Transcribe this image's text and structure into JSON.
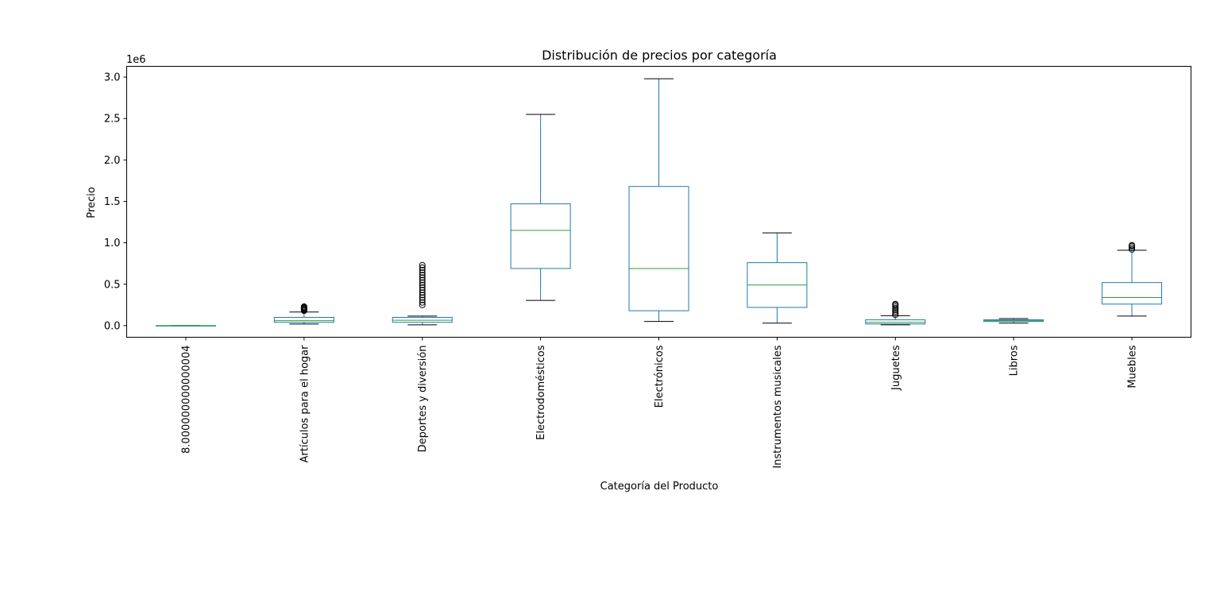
{
  "chart_data": {
    "type": "box",
    "title": "Distribución de precios por categoría",
    "xlabel": "Categoría del Producto",
    "ylabel": "Precio",
    "y_offset_label": "1e6",
    "y_scale": 1000000,
    "ylim": [
      -0.14,
      3.13
    ],
    "yticks": [
      0.0,
      0.5,
      1.0,
      1.5,
      2.0,
      2.5,
      3.0
    ],
    "ytick_labels": [
      "0.0",
      "0.5",
      "1.0",
      "1.5",
      "2.0",
      "2.5",
      "3.0"
    ],
    "grid": false,
    "colors": {
      "box": "#1f77b4",
      "median": "#2ca02c",
      "whisker_cap": "#000000",
      "axis": "#000000"
    },
    "boxes": [
      {
        "category": "8.000000000000004",
        "whisker_low": 0.0,
        "q1": 0.0,
        "median": 0.0,
        "q3": 0.0,
        "whisker_high": 0.0,
        "outliers": []
      },
      {
        "category": "Artículos para el hogar",
        "whisker_low": 0.02,
        "q1": 0.04,
        "median": 0.06,
        "q3": 0.1,
        "whisker_high": 0.165,
        "outliers": [
          0.18,
          0.19,
          0.2,
          0.21,
          0.22,
          0.23
        ]
      },
      {
        "category": "Deportes y diversión",
        "whisker_low": 0.01,
        "q1": 0.04,
        "median": 0.065,
        "q3": 0.1,
        "whisker_high": 0.115,
        "outliers": [
          0.25,
          0.28,
          0.31,
          0.34,
          0.37,
          0.4,
          0.43,
          0.46,
          0.49,
          0.52,
          0.55,
          0.58,
          0.61,
          0.64,
          0.67,
          0.7,
          0.73
        ]
      },
      {
        "category": "Electrodomésticos",
        "whisker_low": 0.305,
        "q1": 0.69,
        "median": 1.15,
        "q3": 1.47,
        "whisker_high": 2.55,
        "outliers": []
      },
      {
        "category": "Electrónicos",
        "whisker_low": 0.05,
        "q1": 0.18,
        "median": 0.69,
        "q3": 1.68,
        "whisker_high": 2.98,
        "outliers": []
      },
      {
        "category": "Instrumentos musicales",
        "whisker_low": 0.03,
        "q1": 0.22,
        "median": 0.49,
        "q3": 0.76,
        "whisker_high": 1.12,
        "outliers": []
      },
      {
        "category": "Juguetes",
        "whisker_low": 0.01,
        "q1": 0.02,
        "median": 0.04,
        "q3": 0.07,
        "whisker_high": 0.12,
        "outliers": [
          0.13,
          0.15,
          0.17,
          0.19,
          0.21,
          0.23,
          0.25,
          0.26
        ]
      },
      {
        "category": "Libros",
        "whisker_low": 0.03,
        "q1": 0.05,
        "median": 0.06,
        "q3": 0.07,
        "whisker_high": 0.085,
        "outliers": []
      },
      {
        "category": "Muebles",
        "whisker_low": 0.115,
        "q1": 0.26,
        "median": 0.34,
        "q3": 0.52,
        "whisker_high": 0.91,
        "outliers": [
          0.92,
          0.94,
          0.96,
          0.97
        ]
      }
    ]
  }
}
